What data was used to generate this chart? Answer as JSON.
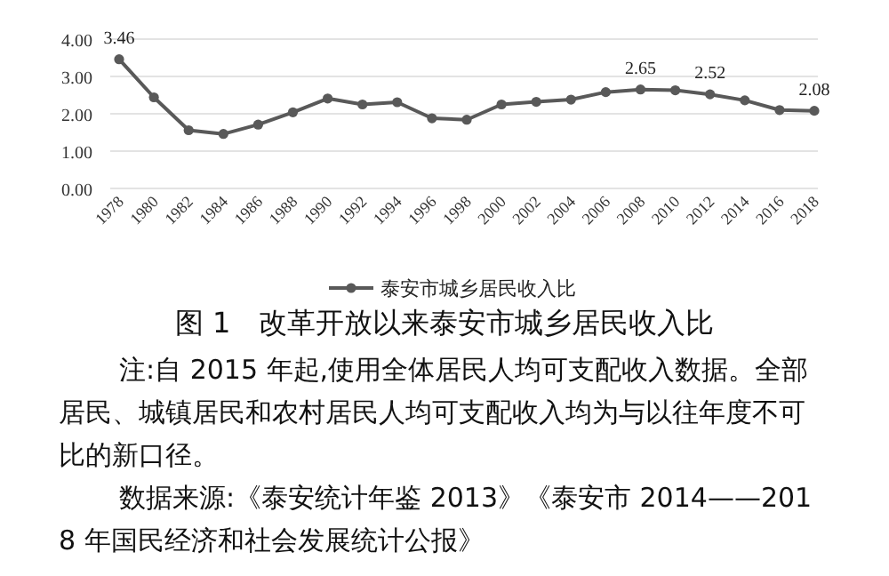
{
  "chart_data": {
    "type": "line",
    "title": "图 1　改革开放以来泰安市城乡居民收入比",
    "categories": [
      "1978",
      "1980",
      "1982",
      "1984",
      "1986",
      "1988",
      "1990",
      "1992",
      "1994",
      "1996",
      "1998",
      "2000",
      "2002",
      "2004",
      "2006",
      "2008",
      "2010",
      "2012",
      "2014",
      "2016",
      "2018"
    ],
    "series": [
      {
        "name": "泰安市城乡居民收入比",
        "color": "#595959",
        "values": [
          3.46,
          2.44,
          1.56,
          1.46,
          1.71,
          2.04,
          2.41,
          2.25,
          2.31,
          1.88,
          1.84,
          2.25,
          2.32,
          2.38,
          2.58,
          2.65,
          2.63,
          2.52,
          2.36,
          2.1,
          2.08
        ],
        "value_labels": [
          "3.46",
          null,
          null,
          null,
          null,
          null,
          null,
          null,
          null,
          null,
          null,
          null,
          null,
          null,
          null,
          "2.65",
          null,
          "2.52",
          null,
          null,
          "2.08"
        ]
      }
    ],
    "ylim": [
      0,
      4
    ],
    "yticks": [
      {
        "value": 0,
        "label": "0.00"
      },
      {
        "value": 1,
        "label": "1.00"
      },
      {
        "value": 2,
        "label": "2.00"
      },
      {
        "value": 3,
        "label": "3.00"
      },
      {
        "value": 4,
        "label": "4.00"
      }
    ],
    "grid": "y",
    "legend": "bottom",
    "marker": "circle",
    "line_style": "solid",
    "annotations": [
      "注:自 2015 年起,使用全体居民人均可支配收入数据。全部居民、城镇居民和农村居民人均可支配收入均为与以往年度不可比的新口径。",
      "数据来源:《泰安统计年鉴 2013》《泰安市 2014——2018 年国民经济和社会发展统计公报》"
    ]
  }
}
